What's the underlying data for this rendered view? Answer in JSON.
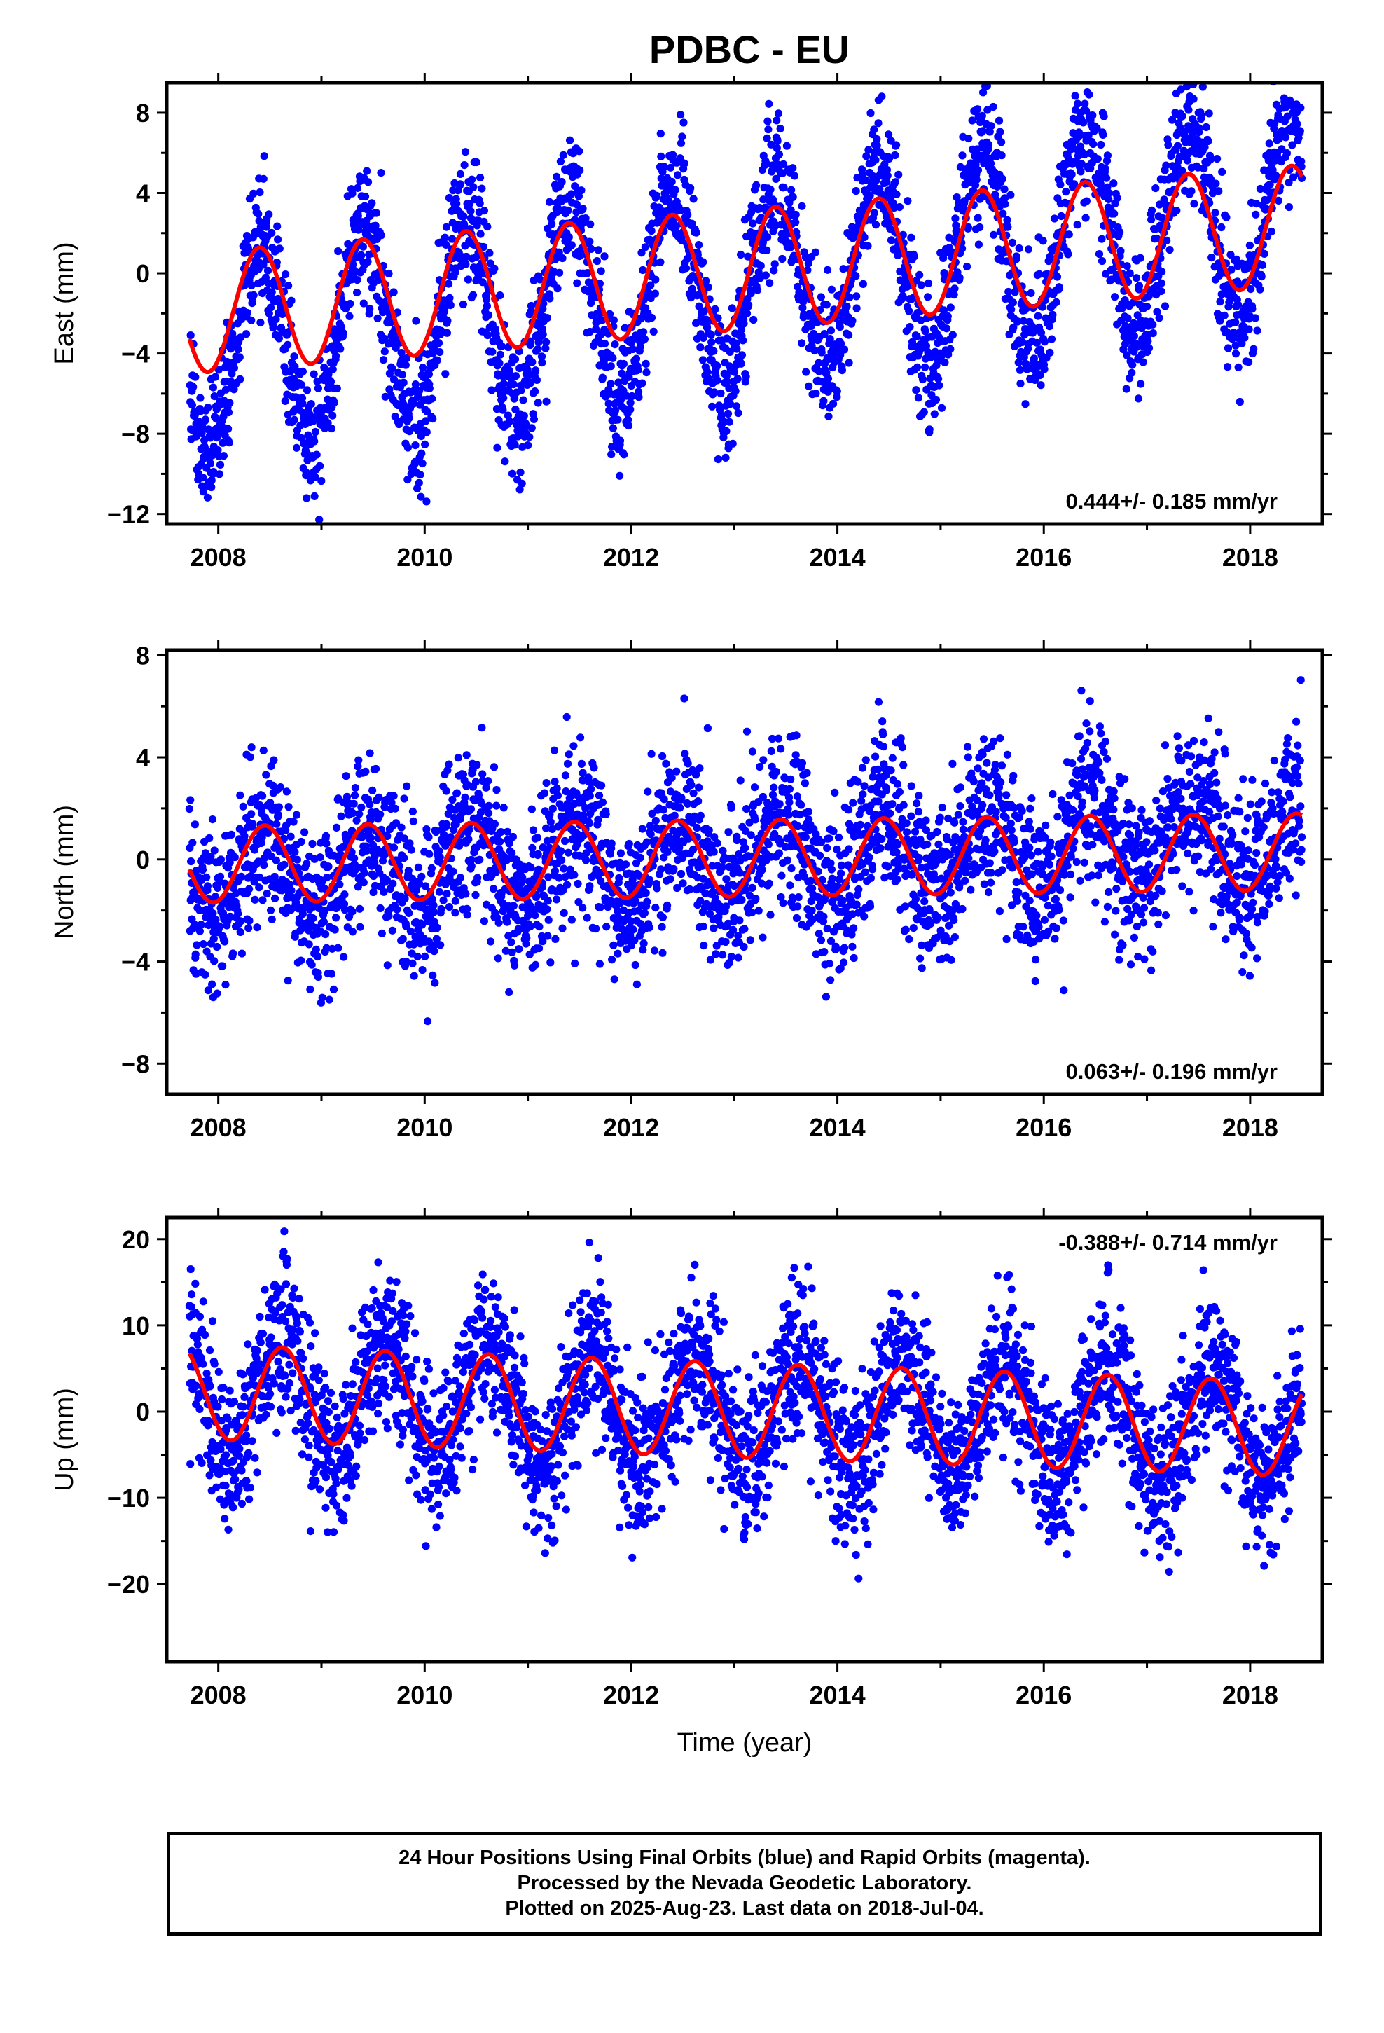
{
  "title": "PDBC - EU",
  "colors": {
    "data": "#0000ff",
    "model": "#ff0000",
    "axis": "#000000"
  },
  "chart_data": [
    {
      "type": "scatter",
      "panel": "east",
      "ylabel": "East (mm)",
      "xlabel": "",
      "xlim": [
        2007.5,
        2018.7
      ],
      "ylim": [
        -12.5,
        9.5
      ],
      "xticks": [
        "2008",
        "2010",
        "2012",
        "2014",
        "2016",
        "2018"
      ],
      "yticks": [
        "8",
        "4",
        "0",
        "-4",
        "-8",
        "-12"
      ],
      "annotation": "0.444+/- 0.185 mm/yr",
      "annotation_position": "bottom-right",
      "series": [
        {
          "kind": "points",
          "color": "#0000ff",
          "x_range": [
            2007.72,
            2018.5
          ],
          "trend_start": -4.0,
          "trend_end": 3.2,
          "seasonal_amplitude": 5.0,
          "peak_phase": 0.4,
          "scatter": 1.7
        },
        {
          "kind": "model_curve",
          "color": "#ff0000",
          "x_range": [
            2007.72,
            2018.5
          ],
          "trend_start": -2.0,
          "trend_end": 2.4,
          "seasonal_amplitude": 3.0,
          "peak_phase": 0.4
        }
      ]
    },
    {
      "type": "scatter",
      "panel": "north",
      "ylabel": "North (mm)",
      "xlabel": "",
      "xlim": [
        2007.5,
        2018.7
      ],
      "ylim": [
        -9.2,
        8.2
      ],
      "xticks": [
        "2008",
        "2010",
        "2012",
        "2014",
        "2016",
        "2018"
      ],
      "yticks": [
        "8",
        "4",
        "0",
        "-4",
        "-8"
      ],
      "annotation": "0.063+/- 0.196 mm/yr",
      "annotation_position": "bottom-right",
      "series": [
        {
          "kind": "points",
          "color": "#0000ff",
          "x_range": [
            2007.72,
            2018.5
          ],
          "trend_start": -0.6,
          "trend_end": 0.8,
          "seasonal_amplitude": 1.6,
          "peak_phase": 0.45,
          "scatter": 1.6
        },
        {
          "kind": "model_curve",
          "color": "#ff0000",
          "x_range": [
            2007.72,
            2018.5
          ],
          "trend_start": -0.2,
          "trend_end": 0.3,
          "seasonal_amplitude": 1.5,
          "peak_phase": 0.45
        }
      ]
    },
    {
      "type": "scatter",
      "panel": "up",
      "ylabel": "Up (mm)",
      "xlabel": "Time (year)",
      "xlim": [
        2007.5,
        2018.7
      ],
      "ylim": [
        -29,
        22.5
      ],
      "xticks": [
        "2008",
        "2010",
        "2012",
        "2014",
        "2016",
        "2018"
      ],
      "yticks": [
        "20",
        "10",
        "0",
        "-10",
        "-20"
      ],
      "annotation": "-0.388+/- 0.714 mm/yr",
      "annotation_position": "top-right",
      "series": [
        {
          "kind": "points",
          "color": "#0000ff",
          "x_range": [
            2007.72,
            2018.5
          ],
          "trend_start": 2.0,
          "trend_end": -2.0,
          "seasonal_amplitude": 6.5,
          "peak_phase": 0.62,
          "scatter": 4.5
        },
        {
          "kind": "model_curve",
          "color": "#ff0000",
          "x_range": [
            2007.72,
            2018.5
          ],
          "trend_start": 2.3,
          "trend_end": -2.0,
          "seasonal_amplitude": 5.5,
          "peak_phase": 0.62
        }
      ]
    }
  ],
  "footer": {
    "line1": "24 Hour Positions Using Final Orbits (blue) and Rapid Orbits (magenta).",
    "line2": "Processed by the Nevada Geodetic Laboratory.",
    "line3": "Plotted on 2025-Aug-23. Last data on 2018-Jul-04."
  }
}
